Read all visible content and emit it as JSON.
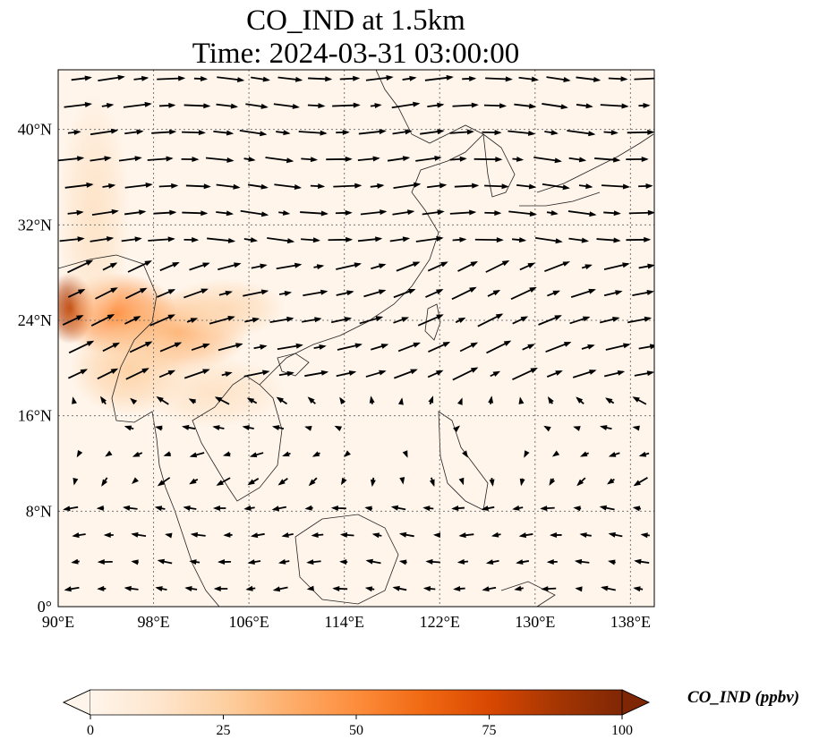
{
  "title": {
    "line1": "CO_IND at 1.5km",
    "line2": "Time: 2024-03-31 03:00:00"
  },
  "axes": {
    "lon_labels": [
      "90°E",
      "98°E",
      "106°E",
      "114°E",
      "122°E",
      "130°E",
      "138°E"
    ],
    "lat_labels": [
      "40°N",
      "32°N",
      "24°N",
      "16°N",
      "8°N",
      "0°"
    ],
    "lon_values": [
      90,
      98,
      106,
      114,
      122,
      130,
      138
    ],
    "lat_values": [
      40,
      32,
      24,
      16,
      8,
      0
    ],
    "lon_range": [
      90,
      140
    ],
    "lat_range": [
      0,
      45
    ],
    "gridlines": "dotted"
  },
  "colorbar": {
    "label": "CO_IND (ppbv)",
    "ticks": [
      "0",
      "25",
      "50",
      "75",
      "100"
    ],
    "tick_values": [
      0,
      25,
      50,
      75,
      100
    ],
    "range": [
      0,
      100
    ],
    "extend": "both",
    "colormap": [
      "#fff5eb",
      "#fee6ce",
      "#fdd0a2",
      "#fdae6b",
      "#fd8d3c",
      "#f16913",
      "#d94801",
      "#a63603",
      "#7f2704"
    ]
  },
  "plumes": [
    {
      "lon": 91,
      "lat": 25,
      "rx": 2,
      "ry": 3,
      "level": 0.85
    },
    {
      "lon": 95,
      "lat": 24.5,
      "rx": 5,
      "ry": 3.5,
      "level": 0.5
    },
    {
      "lon": 100,
      "lat": 23,
      "rx": 6,
      "ry": 3.5,
      "level": 0.35
    },
    {
      "lon": 96,
      "lat": 20,
      "rx": 5,
      "ry": 4,
      "level": 0.25
    },
    {
      "lon": 104,
      "lat": 25,
      "rx": 5,
      "ry": 2.5,
      "level": 0.2
    },
    {
      "lon": 93,
      "lat": 33,
      "rx": 3,
      "ry": 10,
      "level": 0.15
    },
    {
      "lon": 103,
      "lat": 18,
      "rx": 6,
      "ry": 3,
      "level": 0.15
    }
  ]
}
